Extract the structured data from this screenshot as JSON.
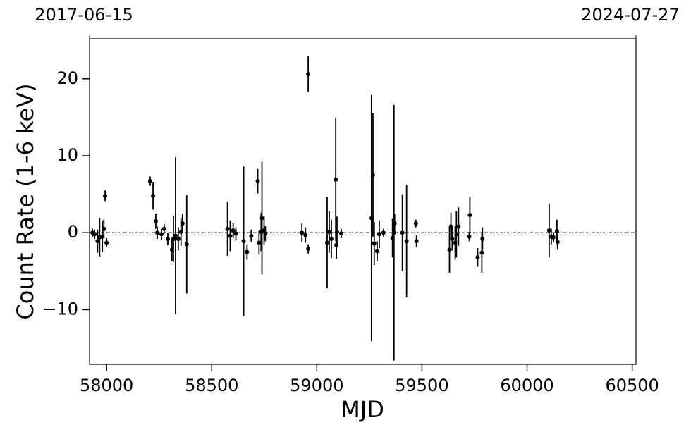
{
  "chart_data": {
    "type": "errorbar",
    "x_label": "MJD",
    "y_label": "Count Rate (1-6 keV)",
    "xlim": [
      57919,
      60518
    ],
    "ylim": [
      -17.1,
      25.2
    ],
    "xticks": [
      58000,
      58500,
      59000,
      59500,
      60000,
      60500
    ],
    "yticks": [
      {
        "value": -10,
        "label": "−10"
      },
      0,
      10,
      20
    ],
    "x2ticks": [
      {
        "value": 57919,
        "label": "2017-06-15"
      },
      {
        "value": 60518,
        "label": "2024-07-27"
      }
    ],
    "reference_line": 0,
    "color": "#000000",
    "x": [
      57933,
      57943,
      57957,
      57967,
      57980,
      57987,
      57993,
      58000,
      58207,
      58221,
      58234,
      58241,
      58261,
      58274,
      58291,
      58311,
      58318,
      58328,
      58341,
      58354,
      58361,
      58381,
      58575,
      58588,
      58602,
      58615,
      58652,
      58668,
      58688,
      58719,
      58725,
      58735,
      58739,
      58749,
      58755,
      58929,
      58946,
      58959,
      58959,
      59049,
      59059,
      59069,
      59090,
      59093,
      59096,
      59116,
      59260,
      59267,
      59273,
      59287,
      59297,
      59317,
      59360,
      59367,
      59370,
      59407,
      59427,
      59471,
      59474,
      59631,
      59638,
      59644,
      59658,
      59664,
      59674,
      59725,
      59728,
      59765,
      59785,
      59788,
      60105,
      60115,
      60125,
      60142,
      60145
    ],
    "values": [
      0,
      -0.2,
      -1.1,
      -0.6,
      -0.5,
      0.5,
      4.8,
      -1.3,
      6.7,
      4.8,
      1.5,
      0,
      -0.2,
      0.5,
      -0.8,
      -2.2,
      -0.8,
      -0.4,
      -0.8,
      0.1,
      1.2,
      -1.5,
      0.5,
      -0.4,
      0.3,
      -0.1,
      -1.1,
      -2.5,
      -0.4,
      6.7,
      -1.3,
      0.1,
      1.9,
      0.3,
      -0.1,
      0,
      -0.3,
      -2.1,
      20.6,
      -1.3,
      0.1,
      -0.8,
      6.9,
      -1.6,
      0.1,
      -0.1,
      1.9,
      7.5,
      -1.4,
      -2.4,
      -0.2,
      0,
      -0.7,
      0,
      1.2,
      0,
      -1.1,
      1.2,
      -1.1,
      -2.2,
      0.8,
      -0.8,
      -1.3,
      -0.2,
      0.8,
      -0.5,
      2.3,
      -3.2,
      -2.6,
      -0.8,
      0.3,
      -0.5,
      -0.6,
      0.2,
      -1.2
    ],
    "errors": [
      0.5,
      0.6,
      1.5,
      2.5,
      2,
      1.2,
      0.7,
      0.6,
      0.6,
      1.8,
      1,
      0.8,
      0.7,
      0.6,
      0.8,
      1.5,
      3,
      10.2,
      1.5,
      1.8,
      1.2,
      6.4,
      3.5,
      2,
      1,
      0.8,
      9.7,
      1,
      0.8,
      1.6,
      1.5,
      2.5,
      7.3,
      1.8,
      1,
      1.2,
      1,
      0.6,
      2.3,
      5.9,
      2.7,
      2.5,
      8,
      1.8,
      2,
      0.6,
      16,
      8,
      2.8,
      1.3,
      1.8,
      0.5,
      2.5,
      16.6,
      1.2,
      5,
      7.3,
      0.5,
      0.8,
      3,
      1.8,
      1.5,
      2.2,
      3,
      2.5,
      0.6,
      2.4,
      1.2,
      2.6,
      1.5,
      3.5,
      1,
      0.6,
      1.5,
      1
    ]
  }
}
